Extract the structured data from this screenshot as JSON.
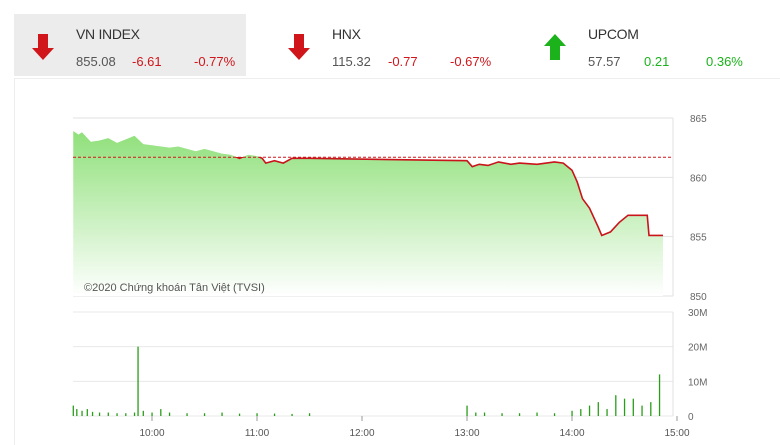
{
  "indices": [
    {
      "name": "VN INDEX",
      "value": "855.08",
      "change": "-6.61",
      "pct": "-0.77%",
      "direction": "down",
      "active": true
    },
    {
      "name": "HNX",
      "value": "115.32",
      "change": "-0.77",
      "pct": "-0.67%",
      "direction": "down",
      "active": false
    },
    {
      "name": "UPCOM",
      "value": "57.57",
      "change": "0.21",
      "pct": "0.36%",
      "direction": "up",
      "active": false
    }
  ],
  "colors": {
    "down": "#d0161b",
    "up": "#1bb21b",
    "fill": "#8fe07a",
    "line": "#c8141a"
  },
  "chart_data": [
    {
      "type": "area",
      "reference": 861.69,
      "ylim": [
        850,
        865
      ],
      "yticks": [
        "865",
        "860",
        "855",
        "850"
      ],
      "watermark": "©2020 Chứng khoán Tân Việt (TVSI)",
      "x": [
        "09:15",
        "09:18",
        "09:20",
        "09:25",
        "09:30",
        "09:35",
        "09:40",
        "09:45",
        "09:50",
        "09:55",
        "10:00",
        "10:10",
        "10:15",
        "10:25",
        "10:30",
        "10:40",
        "10:45",
        "10:50",
        "10:55",
        "11:00",
        "11:03",
        "11:05",
        "11:10",
        "11:15",
        "11:20",
        "11:30",
        "13:00",
        "13:03",
        "13:07",
        "13:12",
        "13:18",
        "13:25",
        "13:30",
        "13:40",
        "13:50",
        "13:55",
        "14:00",
        "14:03",
        "14:06",
        "14:10",
        "14:15",
        "14:17",
        "14:22",
        "14:27",
        "14:32",
        "14:43",
        "14:44",
        "14:52"
      ],
      "values": [
        863.9,
        863.6,
        863.8,
        863.0,
        863.1,
        863.3,
        862.9,
        863.2,
        863.5,
        862.8,
        862.7,
        862.5,
        862.6,
        862.2,
        862.4,
        862.0,
        861.9,
        861.6,
        861.9,
        861.8,
        861.6,
        861.2,
        861.4,
        861.2,
        861.6,
        861.6,
        861.4,
        860.9,
        861.1,
        861.0,
        861.3,
        861.1,
        861.2,
        861.1,
        861.3,
        861.2,
        860.6,
        859.6,
        858.2,
        857.4,
        855.8,
        855.1,
        855.4,
        856.2,
        856.8,
        856.8,
        855.1,
        855.1
      ]
    },
    {
      "type": "bar",
      "ylim": [
        0,
        30
      ],
      "yticks": [
        "30M",
        "20M",
        "10M",
        "0"
      ],
      "xticks": [
        "10:00",
        "11:00",
        "12:00",
        "13:00",
        "14:00",
        "15:00"
      ],
      "x": [
        "09:15",
        "09:17",
        "09:20",
        "09:23",
        "09:26",
        "09:30",
        "09:35",
        "09:40",
        "09:45",
        "09:50",
        "09:52",
        "09:55",
        "10:00",
        "10:05",
        "10:10",
        "10:20",
        "10:30",
        "10:40",
        "10:50",
        "11:00",
        "11:10",
        "11:20",
        "11:30",
        "13:00",
        "13:05",
        "13:10",
        "13:20",
        "13:30",
        "13:40",
        "13:50",
        "14:00",
        "14:05",
        "14:10",
        "14:15",
        "14:20",
        "14:25",
        "14:30",
        "14:35",
        "14:40",
        "14:45",
        "14:50"
      ],
      "values": [
        3,
        2,
        1.5,
        2,
        1.2,
        1,
        1,
        0.8,
        0.8,
        1,
        20,
        1.5,
        1,
        2,
        1,
        0.8,
        0.8,
        1,
        0.7,
        0.8,
        0.7,
        0.6,
        0.8,
        3,
        1,
        1,
        0.8,
        0.8,
        1,
        0.8,
        1.5,
        2,
        3,
        4,
        2,
        6,
        5,
        5,
        3,
        4,
        12
      ]
    }
  ]
}
